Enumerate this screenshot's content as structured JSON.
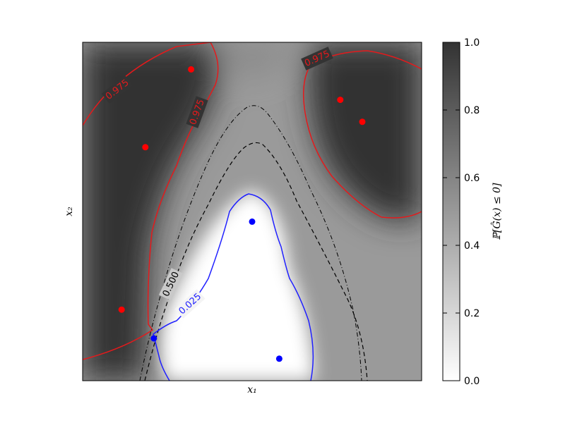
{
  "chart_data": {
    "type": "heatmap",
    "title": "",
    "xlabel": "x₁",
    "ylabel": "x₂",
    "xlim": [
      0,
      1
    ],
    "ylim": [
      0,
      1
    ],
    "colorbar": {
      "label": "ℙ[Ĝ(x) ≤ 0]",
      "ticks": [
        "0.0",
        "0.2",
        "0.4",
        "0.6",
        "0.8",
        "1.0"
      ],
      "range": [
        0,
        1
      ],
      "colormap": "white-to-dark-gray"
    },
    "contours": [
      {
        "level": "0.975",
        "color": "#e41a1c",
        "style": "solid"
      },
      {
        "level": "0.500",
        "color": "#000000",
        "style": "dashed"
      },
      {
        "level": "0.025",
        "color": "#1f1fff",
        "style": "solid"
      }
    ],
    "points": [
      {
        "x": 0.32,
        "y": 0.92,
        "class": "red"
      },
      {
        "x": 0.185,
        "y": 0.69,
        "class": "red"
      },
      {
        "x": 0.115,
        "y": 0.21,
        "class": "red"
      },
      {
        "x": 0.76,
        "y": 0.83,
        "class": "red"
      },
      {
        "x": 0.825,
        "y": 0.765,
        "class": "red"
      },
      {
        "x": 0.5,
        "y": 0.47,
        "class": "blue"
      },
      {
        "x": 0.58,
        "y": 0.065,
        "class": "blue"
      },
      {
        "x": 0.21,
        "y": 0.125,
        "class": "blue"
      }
    ],
    "colors": {
      "red": "#ff0000",
      "blue": "#0000ff",
      "dark": "#333333",
      "light": "#ffffff"
    }
  }
}
